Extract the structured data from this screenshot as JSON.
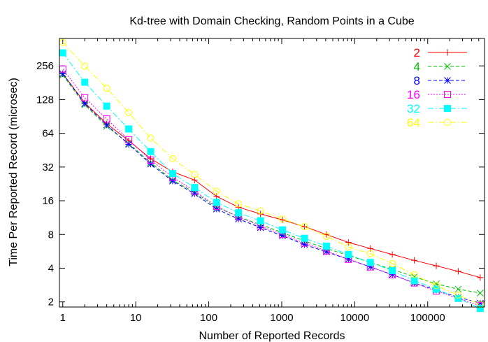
{
  "chart_data": {
    "type": "line",
    "title": "Kd-tree with Domain Checking, Random Points in a Cube",
    "xlabel": "Number of Reported Records",
    "ylabel": "Time Per Reported Record (microsec)",
    "xscale": "log10",
    "yscale": "log2",
    "xlim": [
      0.9,
      600000
    ],
    "ylim": [
      1.8,
      450
    ],
    "xticks": [
      1,
      10,
      100,
      1000,
      10000,
      100000
    ],
    "xtick_labels": [
      "1",
      "10",
      "100",
      "1000",
      "10000",
      "100000"
    ],
    "yticks": [
      2,
      4,
      8,
      16,
      32,
      64,
      128,
      256
    ],
    "ytick_labels": [
      "2",
      "4",
      "8",
      "16",
      "32",
      "64",
      "128",
      "256"
    ],
    "grid": false,
    "legend_position": "top-right",
    "x": [
      1,
      2,
      4,
      8,
      16,
      32,
      64,
      128,
      256,
      512,
      1024,
      2048,
      4096,
      8192,
      16384,
      32768,
      65536,
      131072,
      262144,
      524288
    ],
    "series": [
      {
        "name": "2",
        "color": "#ff0000",
        "marker": "plus",
        "dash": "solid",
        "values": [
          218,
          120,
          78,
          55,
          38,
          29,
          24.5,
          17.5,
          14,
          12.2,
          10.8,
          9.4,
          8,
          6.8,
          6,
          5.3,
          4.7,
          4.2,
          3.75,
          3.3
        ]
      },
      {
        "name": "4",
        "color": "#00c000",
        "marker": "x",
        "dash": "dash",
        "values": [
          212,
          115,
          74,
          52,
          35,
          24.5,
          19,
          14,
          11.5,
          9.8,
          8.3,
          7,
          6,
          5.2,
          4.5,
          3.9,
          3.35,
          2.9,
          2.6,
          2.4
        ]
      },
      {
        "name": "8",
        "color": "#0000ff",
        "marker": "star",
        "dash": "dash",
        "values": [
          218,
          118,
          76,
          51,
          34,
          24,
          18.5,
          13.5,
          11,
          9.2,
          7.8,
          6.5,
          5.6,
          4.8,
          4.1,
          3.5,
          2.95,
          2.55,
          2.2,
          1.95
        ]
      },
      {
        "name": "16",
        "color": "#ff00ff",
        "marker": "square",
        "dash": "dot",
        "values": [
          240,
          133,
          86,
          56,
          37,
          26,
          19.5,
          14.3,
          11.5,
          9.5,
          8,
          6.7,
          5.7,
          4.8,
          4.1,
          3.5,
          2.95,
          2.5,
          2.15,
          1.85
        ]
      },
      {
        "name": "32",
        "color": "#00ffff",
        "marker": "filled-square",
        "dash": "dashdot",
        "values": [
          335,
          183,
          112,
          70,
          44,
          28,
          21,
          15.5,
          12.5,
          10.6,
          8.8,
          7.4,
          6.3,
          5.3,
          4.5,
          3.8,
          3.1,
          2.6,
          2.15,
          1.75
        ]
      },
      {
        "name": "64",
        "color": "#ffff00",
        "marker": "circle",
        "dash": "dashdot",
        "values": [
          415,
          255,
          162,
          98,
          58,
          38,
          27.5,
          19.5,
          15,
          13,
          11,
          9.4,
          7.7,
          6.2,
          5.4,
          4.4,
          3.5,
          2.8,
          2.3,
          1.9
        ]
      }
    ]
  }
}
